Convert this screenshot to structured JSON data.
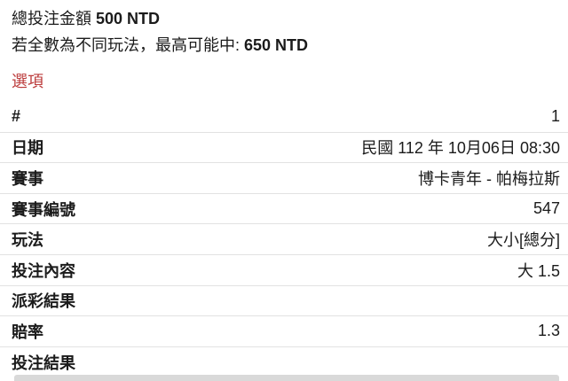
{
  "summary": {
    "total_stake_label": "總投注金額",
    "total_stake_value": "500 NTD",
    "max_win_label": "若全數為不同玩法，最高可能中:",
    "max_win_value": "650 NTD",
    "options_label": "選項"
  },
  "details": {
    "rows": [
      {
        "label": "#",
        "value": "1"
      },
      {
        "label": "日期",
        "value": "民國 112 年 10月06日 08:30"
      },
      {
        "label": "賽事",
        "value": "博卡青年 - 帕梅拉斯"
      },
      {
        "label": "賽事編號",
        "value": "547"
      },
      {
        "label": "玩法",
        "value": "大小[總分]"
      },
      {
        "label": "投注內容",
        "value": "大 1.5"
      },
      {
        "label": "派彩結果",
        "value": ""
      },
      {
        "label": "賠率",
        "value": "1.3"
      },
      {
        "label": "投注結果",
        "value": ""
      }
    ]
  },
  "colors": {
    "accent_red": "#bc3c3c",
    "divider": "#e2e2e2",
    "text": "#1b1b1b",
    "bottom_bar": "#d9d9d9"
  }
}
